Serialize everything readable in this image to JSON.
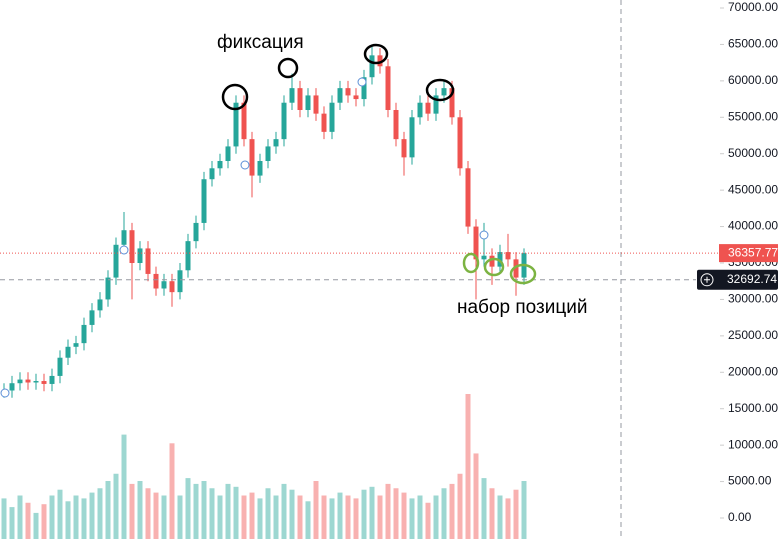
{
  "chart_data": {
    "type": "candlestick",
    "annotations": [
      "фиксация",
      "набор позиций"
    ],
    "up_color": "#26a69a",
    "down_color": "#ef5350",
    "open": [
      17000,
      17500,
      18500,
      19000,
      18600,
      18800,
      18400,
      19500,
      22000,
      23500,
      24000,
      26500,
      28500,
      30000,
      33000,
      37500,
      39500,
      35000,
      37000,
      33500,
      31500,
      32500,
      31000,
      34000,
      38000,
      40500,
      46500,
      48000,
      49000,
      51000,
      57000,
      52000,
      47000,
      49000,
      51000,
      52000,
      57000,
      59000,
      56000,
      58000,
      55500,
      53000,
      57000,
      59000,
      58000,
      57500,
      60500,
      63500,
      62000,
      56000,
      52000,
      49500,
      55000,
      57000,
      55500,
      58000,
      59000,
      55000,
      48000,
      40000,
      35500,
      36000,
      34500,
      36500,
      35500,
      33000
    ],
    "high": [
      18500,
      19500,
      20000,
      20000,
      19800,
      19800,
      20500,
      23000,
      24500,
      25000,
      27500,
      29500,
      31000,
      34000,
      38500,
      42000,
      40500,
      38000,
      38000,
      34500,
      33500,
      33500,
      35000,
      39000,
      41500,
      47500,
      49000,
      50000,
      52000,
      58000,
      58000,
      53000,
      50000,
      52000,
      53000,
      58000,
      61000,
      60000,
      59000,
      59000,
      56500,
      58000,
      60000,
      60000,
      59000,
      61500,
      64800,
      64500,
      63000,
      57000,
      53000,
      56000,
      58000,
      58000,
      59000,
      60000,
      60000,
      56000,
      49000,
      41000,
      40500,
      37000,
      37500,
      39000,
      36500,
      37000
    ],
    "low": [
      16500,
      16500,
      17500,
      17600,
      17600,
      17400,
      17400,
      18500,
      21000,
      22500,
      23000,
      25500,
      27500,
      29000,
      32000,
      36500,
      30000,
      34000,
      32500,
      30500,
      30500,
      29000,
      30000,
      33000,
      37000,
      39500,
      45500,
      47000,
      48000,
      50000,
      51000,
      44000,
      46000,
      48000,
      50000,
      51000,
      56000,
      55000,
      55000,
      54500,
      52000,
      52000,
      56000,
      57000,
      56500,
      56500,
      59500,
      61000,
      55000,
      51000,
      47000,
      48500,
      54000,
      54500,
      54500,
      57000,
      54000,
      47000,
      39000,
      30000,
      34500,
      32000,
      33500,
      34500,
      30500,
      32000
    ],
    "close": [
      17500,
      18500,
      19000,
      18600,
      18800,
      18400,
      19500,
      22000,
      23500,
      24000,
      26500,
      28500,
      30000,
      33000,
      37500,
      39500,
      35000,
      37000,
      33500,
      31500,
      32500,
      31000,
      34000,
      38000,
      40500,
      46500,
      48000,
      49000,
      51000,
      57000,
      52000,
      47000,
      49000,
      51000,
      52000,
      57000,
      59000,
      56000,
      58000,
      55500,
      53000,
      57000,
      59000,
      58000,
      57500,
      60500,
      63500,
      62000,
      56000,
      52000,
      49500,
      55000,
      57000,
      55500,
      58000,
      59000,
      55000,
      48000,
      40000,
      35500,
      36000,
      34500,
      36500,
      35500,
      33000,
      36357.77
    ],
    "volume": [
      28,
      22,
      30,
      25,
      18,
      24,
      30,
      34,
      26,
      30,
      28,
      32,
      35,
      40,
      45,
      72,
      38,
      40,
      35,
      32,
      30,
      66,
      30,
      42,
      38,
      40,
      35,
      30,
      38,
      36,
      30,
      32,
      28,
      35,
      30,
      38,
      34,
      30,
      26,
      40,
      30,
      28,
      32,
      30,
      28,
      34,
      36,
      30,
      38,
      35,
      32,
      28,
      30,
      25,
      30,
      35,
      38,
      45,
      100,
      59,
      42,
      35,
      30,
      28,
      34,
      40
    ],
    "volume_lim": [
      0,
      100
    ],
    "ylim": [
      -2882,
      71098
    ],
    "yticks": [
      {
        "value": 0,
        "label": "0.00"
      },
      {
        "value": 5000,
        "label": "5000.00"
      },
      {
        "value": 10000,
        "label": "10000.00"
      },
      {
        "value": 15000,
        "label": "15000.00"
      },
      {
        "value": 20000,
        "label": "20000.00"
      },
      {
        "value": 25000,
        "label": "25000.00"
      },
      {
        "value": 30000,
        "label": "30000.00"
      },
      {
        "value": 35000,
        "label": "35000.00"
      },
      {
        "value": 40000,
        "label": "40000.00"
      },
      {
        "value": 45000,
        "label": "45000.00"
      },
      {
        "value": 50000,
        "label": "50000.00"
      },
      {
        "value": 55000,
        "label": "55000.00"
      },
      {
        "value": 60000,
        "label": "60000.00"
      },
      {
        "value": 65000,
        "label": "65000.00"
      },
      {
        "value": 70000,
        "label": "70000.00"
      }
    ],
    "last_price": {
      "value": 36357.77,
      "label": "36357.77"
    },
    "cursor_price": {
      "value": 32692.74,
      "label": "32692.74"
    }
  }
}
